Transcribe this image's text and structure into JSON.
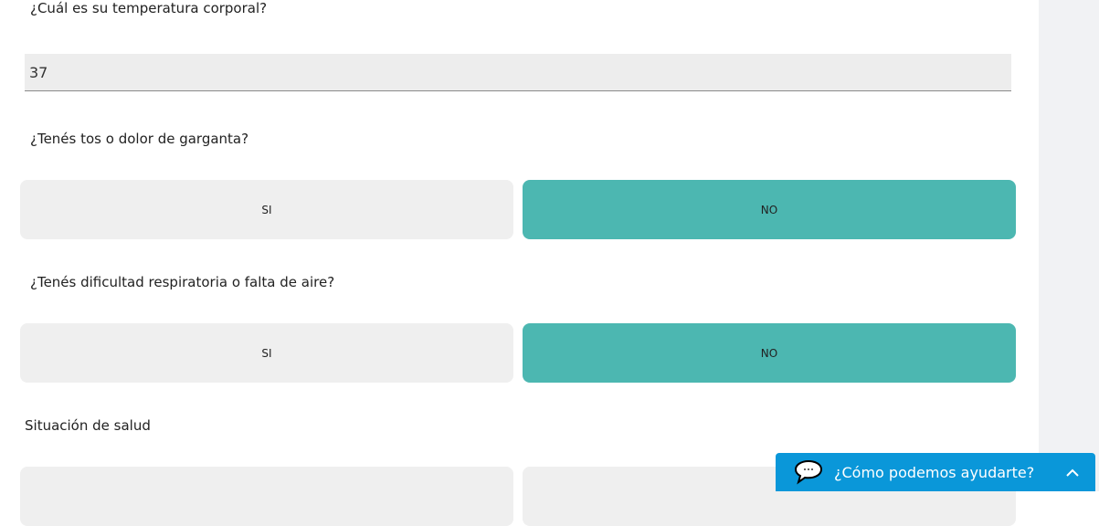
{
  "questions": [
    {
      "label": "¿Cuál es su temperatura corporal?",
      "value": "37"
    },
    {
      "label": "¿Tenés tos o dolor de garganta?",
      "options": [
        "SI",
        "NO"
      ],
      "selected": "NO"
    },
    {
      "label": "¿Tenés dificultad respiratoria o falta de aire?",
      "options": [
        "SI",
        "NO"
      ],
      "selected": "NO"
    },
    {
      "label": "Situación de salud"
    }
  ],
  "chat": {
    "label": "¿Cómo podemos ayudarte?",
    "icon": "speech-bubble-icon",
    "toggle_icon": "chevron-up-icon"
  },
  "colors": {
    "selected": "#4cb7b1",
    "chat": "#0a97d9"
  }
}
